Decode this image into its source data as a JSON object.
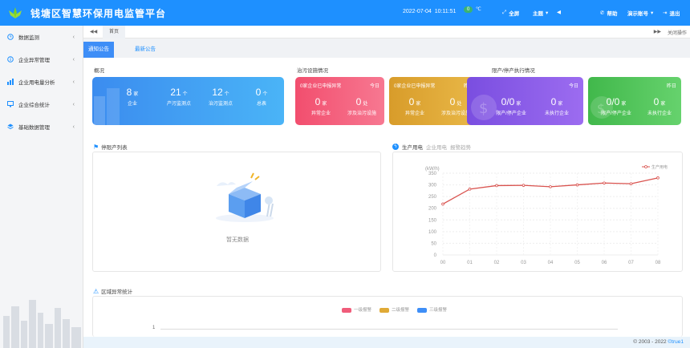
{
  "header": {
    "title": "钱塘区智慧环保用电监管平台",
    "date": "2022-07-04",
    "time": "10:11:51",
    "badge": "0",
    "temp": "℃",
    "fullscreen": "全屏",
    "theme": "主题",
    "help": "帮助",
    "demo_account": "演示账号",
    "logout": "退出"
  },
  "sidebar": {
    "items": [
      {
        "label": "数据监测"
      },
      {
        "label": "企业异常管理"
      },
      {
        "label": "企业用电量分析"
      },
      {
        "label": "企业综合统计"
      },
      {
        "label": "基础数据管理"
      }
    ]
  },
  "tabs": {
    "home": "首页",
    "close_ops": "关闭操作"
  },
  "subtabs": {
    "notice": "通知公告",
    "latest": "最新公告"
  },
  "overview": {
    "title": "概况",
    "stats": [
      {
        "value": "8",
        "unit": "家",
        "label": "企业"
      },
      {
        "value": "21",
        "unit": "个",
        "label": "产污监测点"
      },
      {
        "value": "12",
        "unit": "个",
        "label": "治污监测点"
      },
      {
        "value": "0",
        "unit": "个",
        "label": "总表"
      }
    ]
  },
  "treatment": {
    "title": "治污设施情况",
    "cards": [
      {
        "header": "0家企业已申报异常",
        "badge": "今日",
        "stats": [
          {
            "value": "0",
            "unit": "家",
            "label": "异常企业"
          },
          {
            "value": "0",
            "unit": "处",
            "label": "涉及治污设施"
          }
        ]
      },
      {
        "header": "0家企业已申报异常",
        "badge": "昨日",
        "stats": [
          {
            "value": "0",
            "unit": "家",
            "label": "异常企业"
          },
          {
            "value": "0",
            "unit": "处",
            "label": "涉及治污设施"
          }
        ]
      }
    ]
  },
  "limit": {
    "title": "限产/停产执行情况",
    "cards": [
      {
        "badge": "今日",
        "stats": [
          {
            "value": "0/0",
            "unit": "家",
            "label": "限产/停产企业"
          },
          {
            "value": "0",
            "unit": "家",
            "label": "未执行企业"
          }
        ]
      },
      {
        "badge": "昨日",
        "stats": [
          {
            "value": "0/0",
            "unit": "家",
            "label": "限产/停产企业"
          },
          {
            "value": "0",
            "unit": "家",
            "label": "未执行企业"
          }
        ]
      }
    ]
  },
  "stop_list": {
    "title": "停限产列表",
    "empty": "暂无数据"
  },
  "power": {
    "title": "生产用电",
    "sub1": "企业用电",
    "sub2": "报警趋势"
  },
  "region": {
    "title": "区域异常统计",
    "legend": [
      "一级报警",
      "二级报警",
      "三级报警"
    ],
    "tick": "1"
  },
  "footer": {
    "copyright": "© 2003 - 2022",
    "brand": "©true1"
  },
  "colors": {
    "header": "#1e90ff",
    "blue_card": "#3aa0f5",
    "pink_card": "#f05c7a",
    "yellow_card": "#e0aa36",
    "purple_card": "#8e5ce6",
    "green_card": "#52c45a",
    "line": "#d9534f"
  },
  "chart_data": {
    "type": "line",
    "x": [
      "00",
      "01",
      "02",
      "03",
      "04",
      "05",
      "06",
      "07",
      "08"
    ],
    "series": [
      {
        "name": "生产用电",
        "values": [
          218,
          282,
          297,
          298,
          292,
          300,
          308,
          305,
          330
        ]
      }
    ],
    "ylabel": "(kW/h)",
    "ylim": [
      0,
      350
    ],
    "yticks": [
      0,
      50,
      100,
      150,
      200,
      250,
      300,
      350
    ],
    "grid": true,
    "legend": "top-right"
  }
}
